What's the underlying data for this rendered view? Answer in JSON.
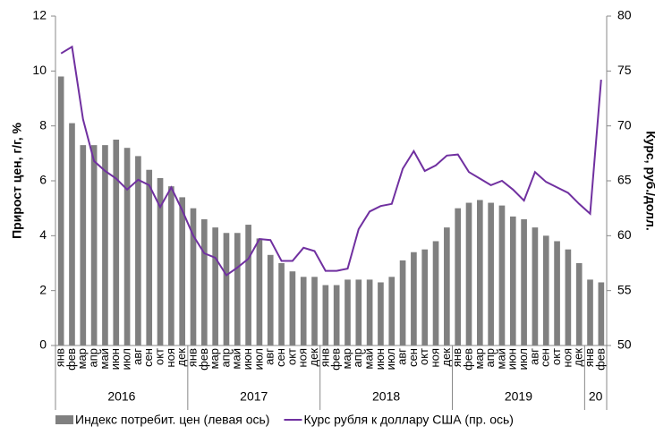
{
  "chart_data": {
    "type": "bar_line",
    "ylabel": "Прирост цен, г/г, %",
    "y2label": "Курс, руб./долл.",
    "categories": [
      "янв",
      "фев",
      "мар",
      "апр",
      "май",
      "июн",
      "июл",
      "авг",
      "сен",
      "окт",
      "ноя",
      "дек",
      "янв",
      "фев",
      "мар",
      "апр",
      "май",
      "июн",
      "июл",
      "авг",
      "сен",
      "окт",
      "ноя",
      "дек",
      "янв",
      "фев",
      "мар",
      "апр",
      "май",
      "июн",
      "июл",
      "авг",
      "сен",
      "окт",
      "ноя",
      "дек",
      "янв",
      "фев",
      "мар",
      "апр",
      "май",
      "июн",
      "июл",
      "авг",
      "сен",
      "окт",
      "ноя",
      "дек",
      "янв",
      "фев"
    ],
    "groups": [
      {
        "label": "2016",
        "count": 12
      },
      {
        "label": "2017",
        "count": 12
      },
      {
        "label": "2018",
        "count": 12
      },
      {
        "label": "2019",
        "count": 12
      },
      {
        "label": "20",
        "count": 2
      }
    ],
    "series": [
      {
        "name": "Индекс потребит. цен (левая ось)",
        "color": "#808080",
        "kind": "bar",
        "values": [
          9.8,
          8.1,
          7.3,
          7.3,
          7.3,
          7.5,
          7.2,
          6.9,
          6.4,
          6.1,
          5.8,
          5.4,
          5.0,
          4.6,
          4.3,
          4.1,
          4.1,
          4.4,
          3.9,
          3.3,
          3.0,
          2.7,
          2.5,
          2.5,
          2.2,
          2.2,
          2.4,
          2.4,
          2.4,
          2.3,
          2.5,
          3.1,
          3.4,
          3.5,
          3.8,
          4.3,
          5.0,
          5.2,
          5.3,
          5.2,
          5.1,
          4.7,
          4.6,
          4.3,
          4.0,
          3.8,
          3.5,
          3.0,
          2.4,
          2.3
        ]
      },
      {
        "name": "Курс рубля к доллару США (пр. ось)",
        "color": "#7030a0",
        "kind": "line",
        "axis": "y2",
        "values": [
          76.6,
          77.2,
          70.6,
          66.8,
          65.9,
          65.2,
          64.2,
          65.1,
          64.6,
          62.6,
          64.4,
          62.3,
          60.0,
          58.4,
          58.0,
          56.4,
          57.1,
          57.9,
          59.7,
          59.6,
          57.7,
          57.7,
          58.9,
          58.6,
          56.8,
          56.8,
          57.0,
          60.6,
          62.2,
          62.7,
          62.9,
          66.1,
          67.7,
          65.9,
          66.4,
          67.3,
          67.4,
          65.8,
          65.2,
          64.6,
          65.0,
          64.2,
          63.2,
          65.8,
          64.9,
          64.4,
          63.9,
          62.9,
          62.0,
          74.2
        ]
      }
    ],
    "ylim": [
      0,
      12
    ],
    "yticks": [
      0,
      2,
      4,
      6,
      8,
      10,
      12
    ],
    "y2lim": [
      50,
      80
    ],
    "y2ticks": [
      50,
      55,
      60,
      65,
      70,
      75,
      80
    ],
    "legend": "bottom"
  }
}
